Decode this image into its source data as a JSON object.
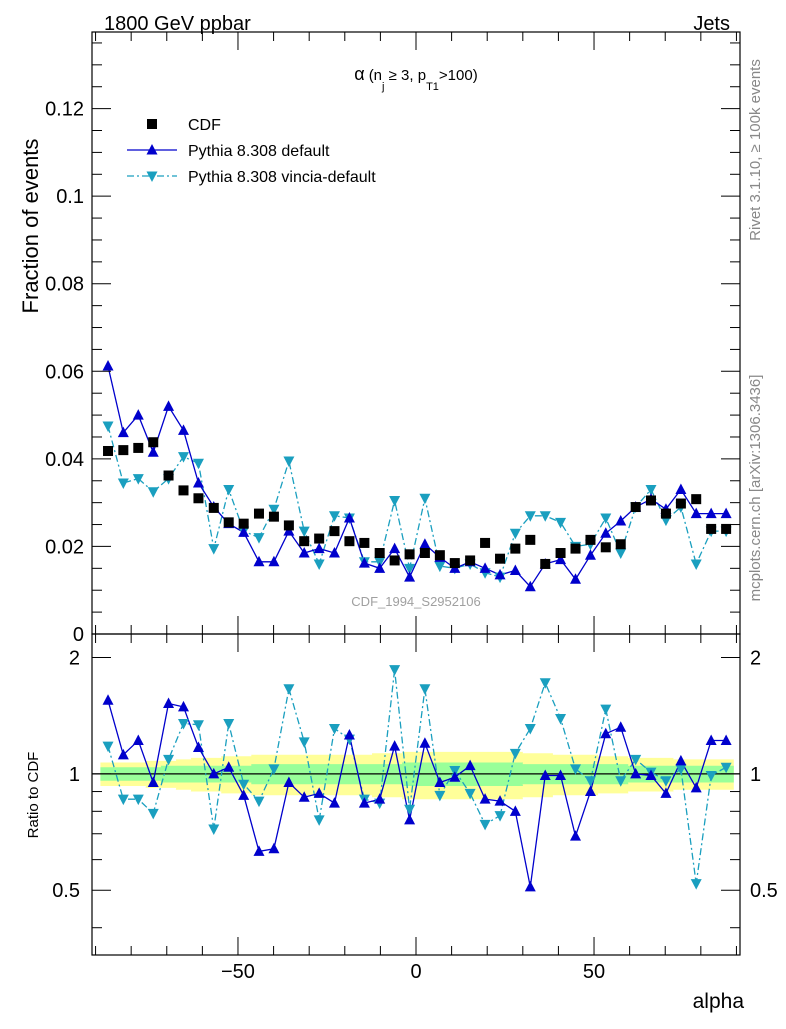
{
  "header": {
    "left": "1800 GeV ppbar",
    "right": "Jets"
  },
  "side": {
    "rivet": "Rivet 3.1.10, ≥ 100k events",
    "mcplots": "mcplots.cern.ch [arXiv:1306.3436]"
  },
  "plot_title": {
    "alpha": "α",
    "open": "(n",
    "sub_j": "j",
    "mid": " ≥ 3, p",
    "sub_T1": "T1",
    "close": ">100)"
  },
  "watermark": "CDF_1994_S2952106",
  "colors": {
    "data": "#000000",
    "default": "#0000cc",
    "vincia": "#1a9fbf",
    "band_inner": "#99ff99",
    "band_outer": "#ffff99"
  },
  "chart_data": [
    {
      "type": "scatter",
      "ylabel": "Fraction of events",
      "xlabel": "",
      "xlim": [
        -91,
        91
      ],
      "ylim": [
        0,
        0.1375
      ],
      "yticks": [
        0,
        0.02,
        0.04,
        0.06,
        0.08,
        0.1,
        0.12
      ],
      "ytick_labels": [
        "0",
        "0.02",
        "0.04",
        "0.06",
        "0.08",
        "0.1",
        "0.12"
      ],
      "x": [
        -86.5,
        -82.2,
        -78.0,
        -73.8,
        -69.5,
        -65.3,
        -61.1,
        -56.8,
        -52.6,
        -48.4,
        -44.1,
        -39.9,
        -35.7,
        -31.4,
        -27.2,
        -22.9,
        -18.7,
        -14.5,
        -10.2,
        -6.0,
        -1.8,
        2.5,
        6.7,
        10.9,
        15.2,
        19.4,
        23.6,
        27.9,
        32.1,
        36.3,
        40.6,
        44.8,
        49.0,
        53.3,
        57.5,
        61.7,
        66.0,
        70.2,
        74.4,
        78.7,
        82.9,
        87.1
      ],
      "series": [
        {
          "name": "CDF",
          "marker": "square",
          "values": [
            0.0418,
            0.042,
            0.0425,
            0.0438,
            0.0362,
            0.0328,
            0.031,
            0.0288,
            0.0255,
            0.0252,
            0.0275,
            0.0268,
            0.0248,
            0.0212,
            0.0218,
            0.0235,
            0.0212,
            0.0208,
            0.0185,
            0.0168,
            0.0182,
            0.0185,
            0.018,
            0.0162,
            0.0168,
            0.0208,
            0.0172,
            0.0195,
            0.0215,
            0.016,
            0.0185,
            0.0195,
            0.0215,
            0.0198,
            0.0205,
            0.029,
            0.0305,
            0.0275,
            0.0298,
            0.0308,
            0.024,
            0.024
          ]
        },
        {
          "name": "Pythia 8.308 default",
          "marker": "triangle-up",
          "values": [
            0.0612,
            0.046,
            0.05,
            0.0415,
            0.052,
            0.0465,
            0.0345,
            0.029,
            0.0252,
            0.0232,
            0.0165,
            0.0165,
            0.0235,
            0.0185,
            0.0195,
            0.0185,
            0.0265,
            0.0162,
            0.015,
            0.0195,
            0.013,
            0.0205,
            0.0175,
            0.015,
            0.0165,
            0.015,
            0.0135,
            0.0145,
            0.0108,
            0.016,
            0.017,
            0.0125,
            0.018,
            0.023,
            0.0258,
            0.029,
            0.0308,
            0.0285,
            0.033,
            0.0275,
            0.0275,
            0.0275
          ]
        },
        {
          "name": "Pythia 8.308 vincia-default",
          "marker": "triangle-down",
          "values": [
            0.0475,
            0.0345,
            0.0355,
            0.0325,
            0.0355,
            0.0405,
            0.039,
            0.0195,
            0.033,
            0.0235,
            0.022,
            0.0285,
            0.0395,
            0.0235,
            0.016,
            0.027,
            0.0265,
            0.0165,
            0.0165,
            0.0305,
            0.015,
            0.031,
            0.0155,
            0.015,
            0.016,
            0.014,
            0.013,
            0.023,
            0.027,
            0.027,
            0.0255,
            0.02,
            0.0205,
            0.0265,
            0.0185,
            0.029,
            0.033,
            0.026,
            0.029,
            0.016,
            0.0235,
            0.0235
          ]
        }
      ],
      "legend": "top-left"
    },
    {
      "type": "line",
      "ylabel": "Ratio to CDF",
      "xlabel": "alpha",
      "xlim": [
        -91,
        91
      ],
      "ylim": [
        0.34,
        2.3
      ],
      "yscale": "log",
      "yticks": [
        0.5,
        1,
        2
      ],
      "ytick_labels": [
        "0.5",
        "1",
        "2"
      ],
      "xticks": [
        -50,
        0,
        50
      ],
      "xtick_labels": [
        "−50",
        "0",
        "50"
      ],
      "reference_line": 1,
      "band_inner_halfwidth": [
        0.04,
        0.04,
        0.04,
        0.04,
        0.05,
        0.05,
        0.05,
        0.05,
        0.05,
        0.05,
        0.06,
        0.06,
        0.06,
        0.06,
        0.06,
        0.06,
        0.06,
        0.06,
        0.06,
        0.06,
        0.07,
        0.07,
        0.07,
        0.07,
        0.07,
        0.07,
        0.07,
        0.07,
        0.06,
        0.06,
        0.06,
        0.06,
        0.06,
        0.06,
        0.06,
        0.05,
        0.05,
        0.05,
        0.05,
        0.05,
        0.05,
        0.05
      ],
      "band_outer_halfwidth": [
        0.07,
        0.07,
        0.07,
        0.08,
        0.08,
        0.09,
        0.1,
        0.1,
        0.11,
        0.11,
        0.12,
        0.12,
        0.12,
        0.12,
        0.12,
        0.12,
        0.12,
        0.12,
        0.13,
        0.13,
        0.14,
        0.14,
        0.14,
        0.14,
        0.14,
        0.14,
        0.14,
        0.14,
        0.13,
        0.13,
        0.12,
        0.12,
        0.12,
        0.11,
        0.11,
        0.1,
        0.1,
        0.1,
        0.09,
        0.09,
        0.09,
        0.09
      ],
      "series": [
        {
          "name": "Pythia 8.308 default",
          "values": [
            1.55,
            1.12,
            1.22,
            0.95,
            1.52,
            1.49,
            1.17,
            1.0,
            1.04,
            0.88,
            0.63,
            0.64,
            0.95,
            0.87,
            0.89,
            0.84,
            1.26,
            0.84,
            0.86,
            1.18,
            0.76,
            1.2,
            0.95,
            0.98,
            1.05,
            0.86,
            0.85,
            0.8,
            0.51,
            0.99,
            0.99,
            0.69,
            0.9,
            1.27,
            1.32,
            1.0,
            0.99,
            0.89,
            1.08,
            0.92,
            1.22,
            1.22
          ]
        },
        {
          "name": "Pythia 8.308 vincia-default",
          "values": [
            1.18,
            0.86,
            0.86,
            0.79,
            1.09,
            1.35,
            1.34,
            0.72,
            1.35,
            0.94,
            0.85,
            1.03,
            1.66,
            1.21,
            0.76,
            1.31,
            1.23,
            0.86,
            0.84,
            1.86,
            0.81,
            1.66,
            0.88,
            1.02,
            0.89,
            0.74,
            0.78,
            1.13,
            1.31,
            1.72,
            1.39,
            1.03,
            0.96,
            1.47,
            0.96,
            1.09,
            1.01,
            0.96,
            1.03,
            0.52,
            0.99,
            1.04
          ]
        }
      ]
    }
  ]
}
